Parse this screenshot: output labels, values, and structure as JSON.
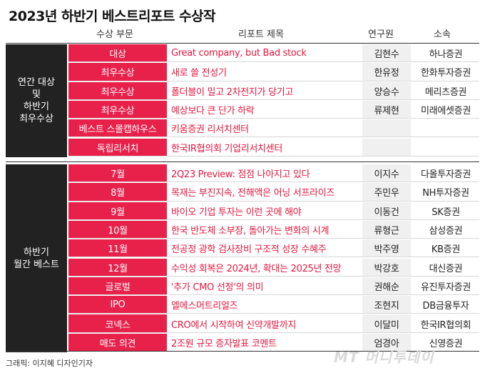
{
  "title": "2023년 하반기 베스트리포트 수상작",
  "header": {
    "category": "수상 부문",
    "report_title": "리포트 제목",
    "researcher": "연구원",
    "affiliation": "소속"
  },
  "groups": [
    {
      "label": "연간 대상\n및\n하반기\n최우수상",
      "rows": [
        {
          "category": "대상",
          "title": "Great company, but Bad stock",
          "researcher": "김현수",
          "affiliation": "하나증권"
        },
        {
          "category": "최우수상",
          "title": "새로 쓸 전성기",
          "researcher": "한유정",
          "affiliation": "한화투자증권"
        },
        {
          "category": "최우수상",
          "title": "폴더블이 밀고 2차전지가 당기고",
          "researcher": "양승수",
          "affiliation": "메리츠증권"
        },
        {
          "category": "최우수상",
          "title": "예상보다 큰 단가 하락",
          "researcher": "류제현",
          "affiliation": "미래에셋증권"
        },
        {
          "category": "베스트 스몰캡하우스",
          "title": "키움증권 리서치센터",
          "researcher": "",
          "affiliation": ""
        },
        {
          "category": "독립리서치",
          "title": "한국IR협의회 기업리서치센터",
          "researcher": "",
          "affiliation": ""
        }
      ]
    },
    {
      "label": "하반기\n월간 베스트",
      "rows": [
        {
          "category": "7월",
          "title": "2Q23 Preview: 점점 나아지고 있다",
          "researcher": "이지수",
          "affiliation": "다올투자증권"
        },
        {
          "category": "8월",
          "title": "목재는 부진지속, 전해액은 어닝 서프라이즈",
          "researcher": "주민우",
          "affiliation": "NH투자증권"
        },
        {
          "category": "9월",
          "title": "바이오 기업 투자는 이런 곳에 해야",
          "researcher": "이동건",
          "affiliation": "SK증권"
        },
        {
          "category": "10월",
          "title": "한국 반도체 소부장, 돌아가는 변화의 시계",
          "researcher": "류형근",
          "affiliation": "삼성증권"
        },
        {
          "category": "11월",
          "title": "전공정 광학 검사장비 구조적 성장 수혜주",
          "researcher": "박주영",
          "affiliation": "KB증권"
        },
        {
          "category": "12월",
          "title": "수익성 회복은 2024년, 확대는 2025년 전망",
          "researcher": "박강호",
          "affiliation": "대신증권"
        },
        {
          "category": "글로벌",
          "title": "'추가 CMO 선정'의 의미",
          "researcher": "권해순",
          "affiliation": "유진투자증권"
        },
        {
          "category": "IPO",
          "title": "엘에스머트리얼즈",
          "researcher": "조현지",
          "affiliation": "DB금융투자"
        },
        {
          "category": "코넥스",
          "title": "CRO에서 시작하여 신약개발까지",
          "researcher": "이달미",
          "affiliation": "한국IR협의회"
        },
        {
          "category": "매도 의견",
          "title": "2조원 규모 증자발표 코멘트",
          "researcher": "엄경아",
          "affiliation": "신영증권"
        }
      ]
    }
  ],
  "credit": "그래픽: 이지혜 디자인기자",
  "watermark": "MT 머니투데이",
  "colors": {
    "accent": "#e8214b",
    "dark": "#222222",
    "title_text": "#e3173f"
  }
}
